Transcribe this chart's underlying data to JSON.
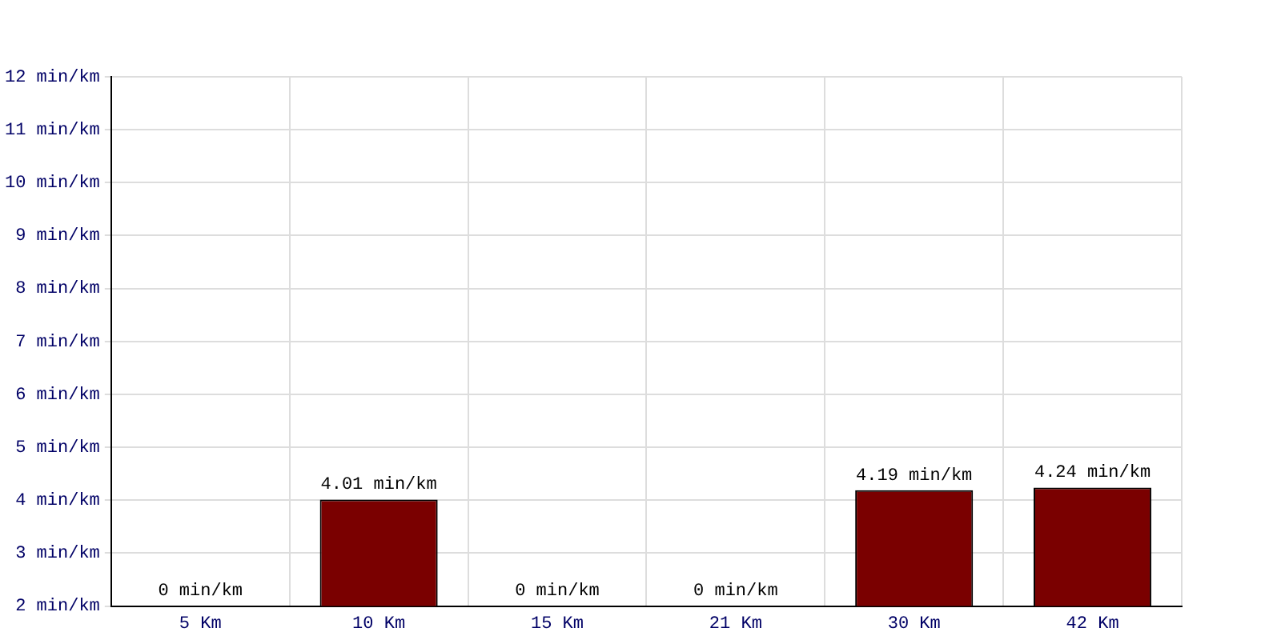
{
  "chart_data": {
    "type": "bar",
    "categories": [
      "5 Km",
      "10 Km",
      "15 Km",
      "21 Km",
      "30 Km",
      "42 Km"
    ],
    "values": [
      null,
      4.01,
      null,
      null,
      4.19,
      4.24
    ],
    "value_labels": [
      "0 min/km",
      "4.01 min/km",
      "0 min/km",
      "0 min/km",
      "4.19 min/km",
      "4.24 min/km"
    ],
    "color": "#7a0000",
    "ylim": [
      2,
      12
    ],
    "yticks": [
      {
        "value": 2,
        "label": "2 min/km"
      },
      {
        "value": 3,
        "label": "3 min/km"
      },
      {
        "value": 4,
        "label": "4 min/km"
      },
      {
        "value": 5,
        "label": "5 min/km"
      },
      {
        "value": 6,
        "label": "6 min/km"
      },
      {
        "value": 7,
        "label": "7 min/km"
      },
      {
        "value": 8,
        "label": "8 min/km"
      },
      {
        "value": 9,
        "label": "9 min/km"
      },
      {
        "value": 10,
        "label": "10 min/km"
      },
      {
        "value": 11,
        "label": "11 min/km"
      },
      {
        "value": 12,
        "label": "12 min/km"
      }
    ],
    "grid": true,
    "legend": false
  }
}
